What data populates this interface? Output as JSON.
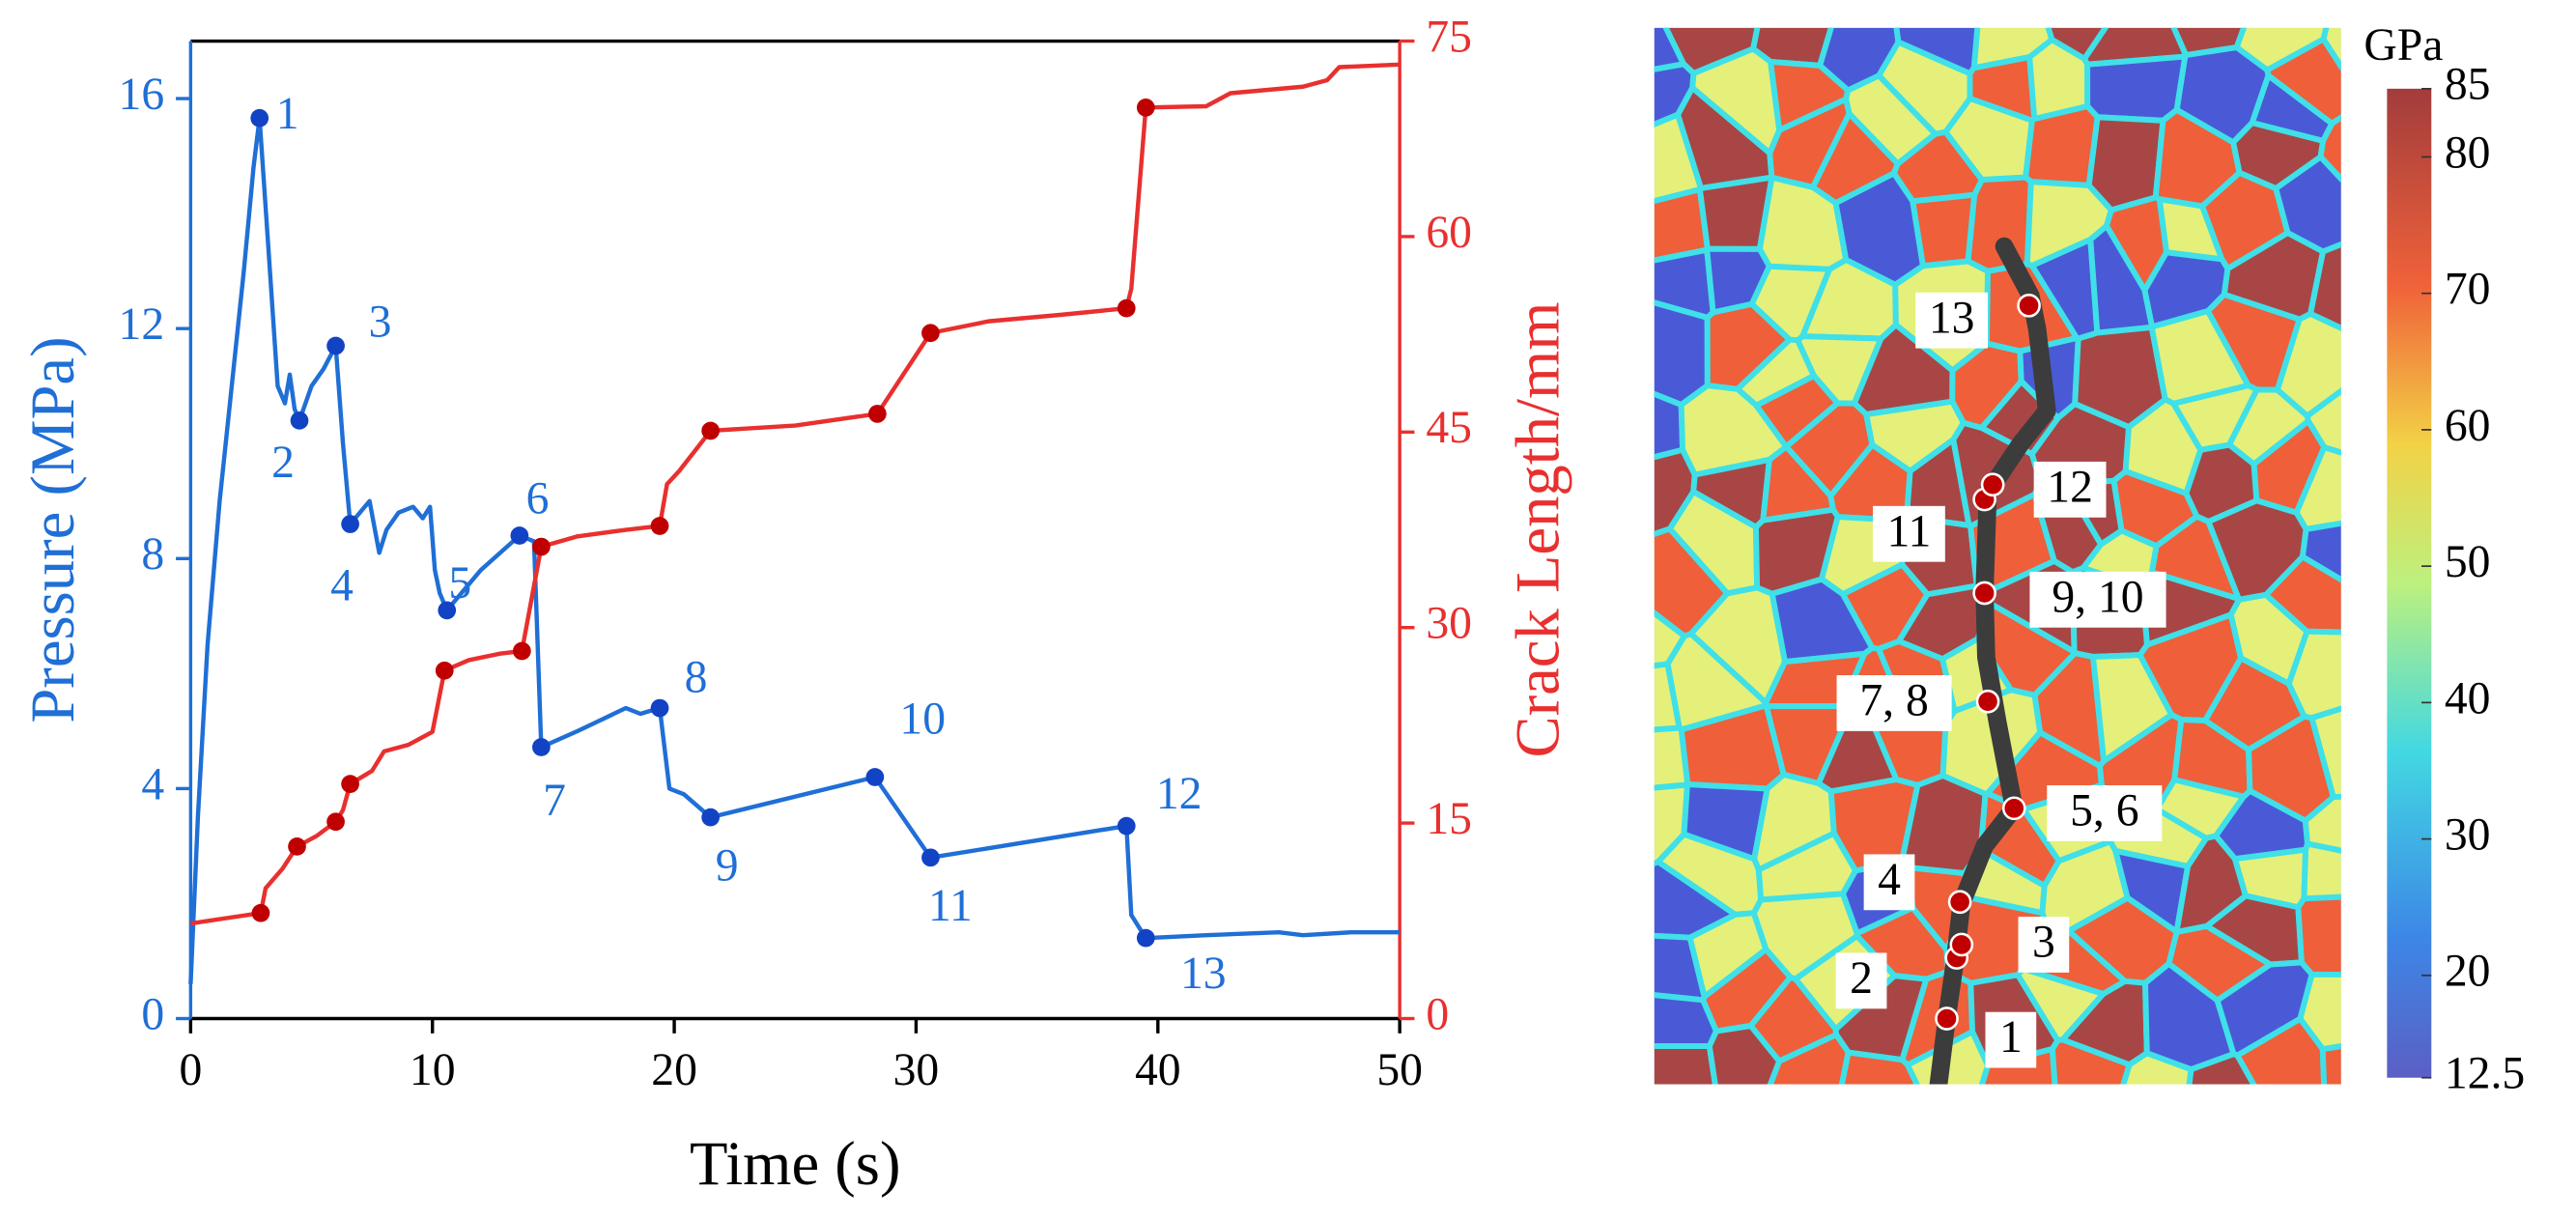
{
  "chart_data": {
    "type": "line",
    "xlabel": "Time (s)",
    "ylabel": "Pressure (MPa)",
    "y2label": "Crack Length/mm",
    "xlim": [
      0,
      50
    ],
    "xticks": [
      0,
      10,
      20,
      30,
      40,
      50
    ],
    "ylim": [
      0,
      17
    ],
    "yticks": [
      0,
      4,
      8,
      12,
      16
    ],
    "y2lim": [
      0,
      75
    ],
    "y2ticks": [
      0,
      15,
      30,
      45,
      60,
      75
    ],
    "series": [
      {
        "color": "#1f6fd6",
        "x": [
          0,
          0.3,
          0.7,
          1.2,
          1.7,
          2.2,
          2.6,
          2.85,
          3.2,
          3.6,
          3.9,
          4.1,
          4.3,
          4.5,
          5,
          5.5,
          6.0,
          6.3,
          6.6,
          7.0,
          7.4,
          7.8,
          8.1,
          8.6,
          9.2,
          9.6,
          9.9,
          10.1,
          10.3,
          10.6,
          12,
          13.6,
          14.2,
          14.5,
          16,
          17,
          18,
          18.6,
          19.4,
          19.8,
          20.4,
          21.5,
          28.3,
          30.6,
          38.7,
          38.9,
          39.5,
          42,
          45,
          46,
          48,
          50
        ],
        "values": [
          0.6,
          3.5,
          6.5,
          9,
          11,
          13,
          14.8,
          15.66,
          13.5,
          11,
          10.7,
          11.2,
          10.6,
          10.4,
          11,
          11.3,
          11.7,
          10,
          8.6,
          8.8,
          9,
          8.1,
          8.5,
          8.8,
          8.9,
          8.7,
          8.9,
          7.8,
          7.4,
          7.1,
          7.8,
          8.4,
          8.3,
          4.72,
          5.0,
          5.2,
          5.4,
          5.3,
          5.4,
          4.0,
          3.9,
          3.5,
          4.2,
          2.8,
          3.35,
          1.8,
          1.4,
          1.45,
          1.5,
          1.45,
          1.5,
          1.5
        ]
      },
      {
        "color": "#e8302f",
        "axis": "y2",
        "x": [
          0,
          2.9,
          3.1,
          3.8,
          4.4,
          5.2,
          6.0,
          6.3,
          6.6,
          7.5,
          8,
          9,
          10,
          10.5,
          11.5,
          12.8,
          13.7,
          14.5,
          16,
          18,
          19.4,
          19.7,
          20.2,
          21.5,
          25,
          28.4,
          30.6,
          33,
          36,
          38.7,
          38.9,
          39.5,
          42,
          43,
          46,
          47,
          47.5,
          50
        ],
        "values": [
          7.3,
          8.1,
          10,
          11.5,
          13.2,
          14,
          15.1,
          16,
          18.0,
          19,
          20.5,
          21,
          22,
          26.7,
          27.5,
          28,
          28.2,
          36.2,
          37,
          37.5,
          37.8,
          41,
          42,
          45.1,
          45.5,
          46.4,
          52.6,
          53.5,
          54,
          54.5,
          56,
          69.9,
          70,
          71,
          71.5,
          72,
          73,
          73.2
        ]
      }
    ],
    "markers": [
      {
        "color": "#1243c4",
        "x": [
          2.85,
          4.5,
          6.0,
          6.6,
          10.6,
          13.6,
          14.5,
          19.4,
          21.5,
          28.3,
          30.6,
          38.7,
          39.5
        ],
        "values": [
          15.66,
          10.4,
          11.7,
          8.6,
          7.1,
          8.4,
          4.72,
          5.4,
          3.5,
          4.2,
          2.8,
          3.35,
          1.4
        ],
        "labels": [
          "1",
          "2",
          "3",
          "4",
          "5",
          "6",
          "7",
          "8",
          "9",
          "10",
          "11",
          "12",
          "13"
        ]
      },
      {
        "color": "#c00000",
        "axis": "y2",
        "x": [
          2.9,
          4.4,
          6.0,
          6.6,
          10.5,
          13.7,
          14.5,
          19.4,
          21.5,
          28.4,
          30.6,
          38.7,
          39.5
        ],
        "values": [
          8.1,
          13.2,
          15.1,
          18.0,
          26.7,
          28.2,
          36.2,
          37.8,
          45.1,
          46.4,
          52.6,
          54.5,
          69.9
        ]
      }
    ]
  },
  "map": {
    "labels": [
      "1",
      "2",
      "3",
      "4",
      "5, 6",
      "7, 8",
      "9, 10",
      "11",
      "12",
      "13"
    ],
    "colorbar": {
      "title": "GPa",
      "lim": [
        12.5,
        85
      ],
      "ticks": [
        12.5,
        20,
        30,
        40,
        50,
        60,
        70,
        80,
        85
      ]
    }
  }
}
